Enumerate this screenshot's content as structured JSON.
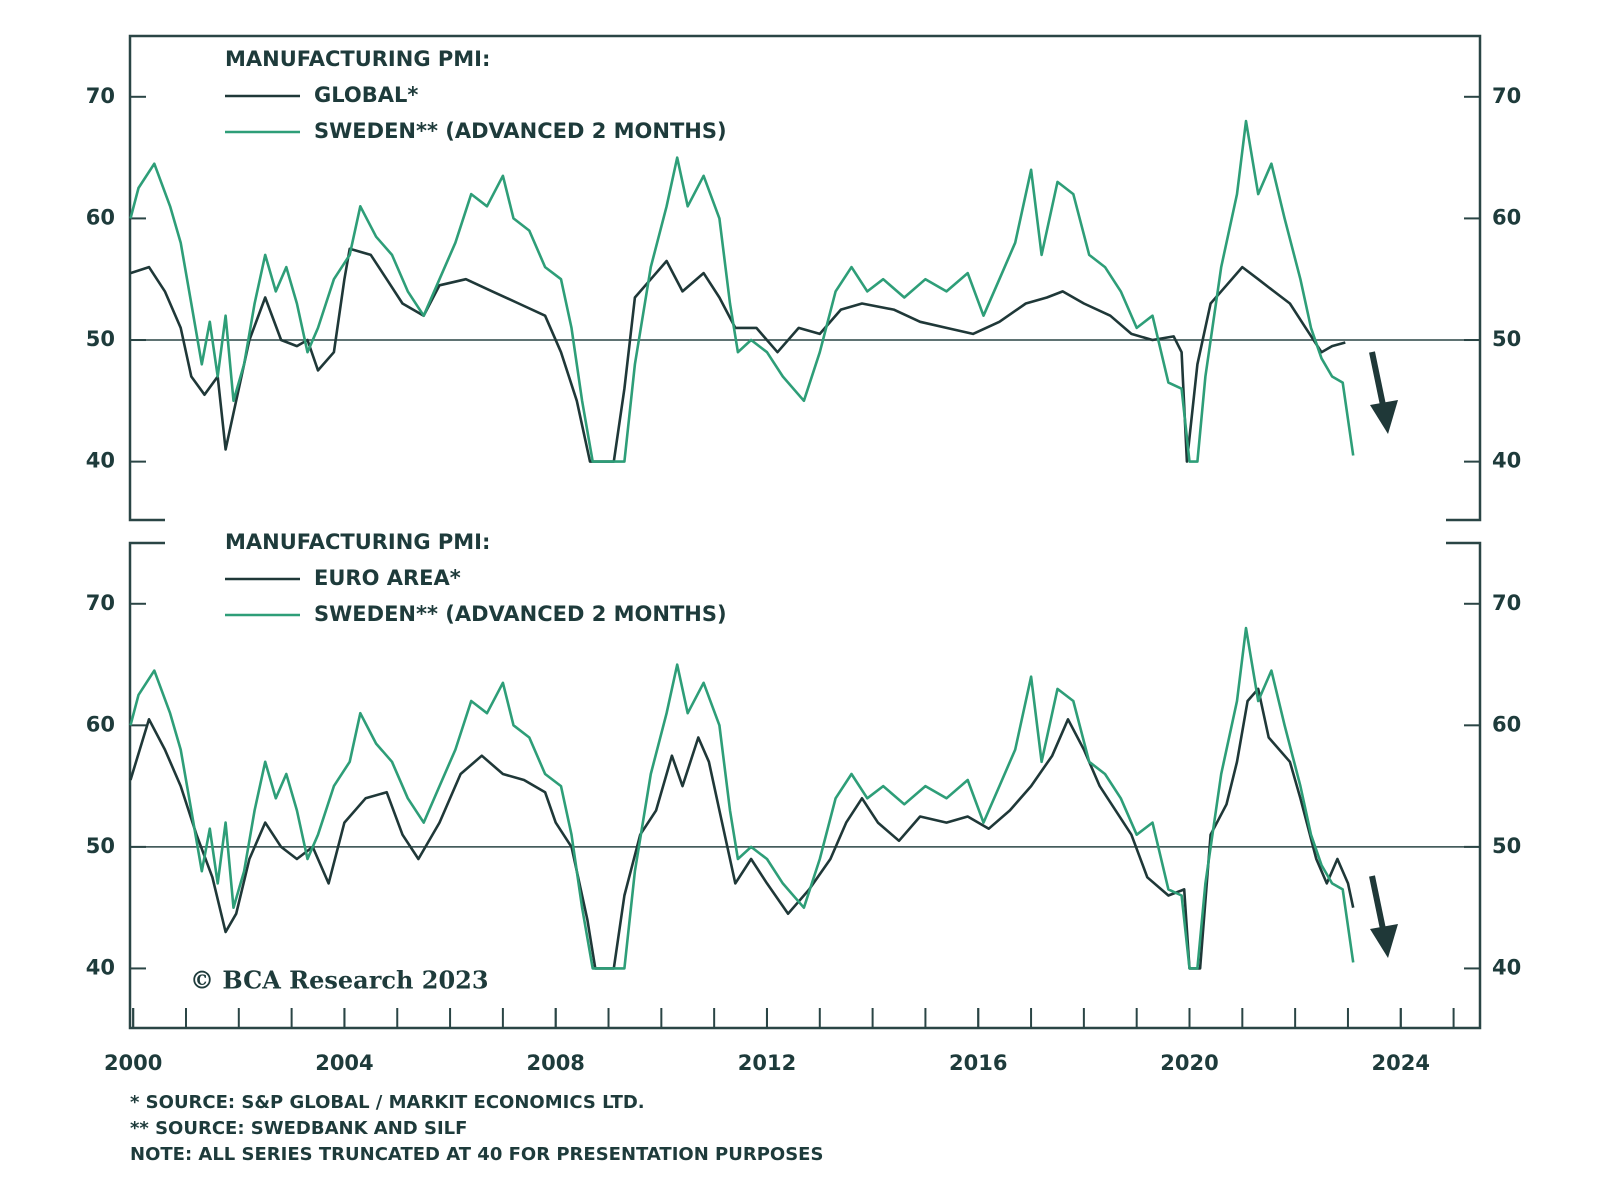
{
  "chart_data": [
    {
      "type": "line",
      "legend_title": "MANUFACTURING PMI:",
      "xlim": [
        1999.94,
        2025.5
      ],
      "ylim": [
        35.2,
        75.0
      ],
      "yticks": [
        40,
        50,
        60,
        70
      ],
      "hline": 50,
      "series": [
        {
          "name": "GLOBAL*",
          "color": "#1f3838",
          "x": [
            1999.95,
            2000.3,
            2000.6,
            2000.9,
            2001.1,
            2001.35,
            2001.6,
            2001.75,
            2001.9,
            2002.2,
            2002.5,
            2002.8,
            2003.1,
            2003.3,
            2003.5,
            2003.8,
            2004.0,
            2004.1,
            2004.5,
            2004.8,
            2005.1,
            2005.5,
            2005.8,
            2006.3,
            2006.8,
            2007.3,
            2007.8,
            2008.1,
            2008.4,
            2008.65,
            2009.1,
            2009.3,
            2009.5,
            2009.8,
            2010.1,
            2010.4,
            2010.8,
            2011.1,
            2011.4,
            2011.8,
            2012.2,
            2012.6,
            2013.0,
            2013.4,
            2013.8,
            2014.4,
            2014.9,
            2015.4,
            2015.9,
            2016.4,
            2016.9,
            2017.3,
            2017.6,
            2018.0,
            2018.5,
            2018.9,
            2019.3,
            2019.7,
            2019.85,
            2019.95,
            2020.15,
            2020.4,
            2020.7,
            2021.0,
            2021.3,
            2021.6,
            2021.9,
            2022.2,
            2022.5,
            2022.7,
            2022.95
          ],
          "values": [
            55.5,
            56,
            54,
            51,
            47,
            45.5,
            47,
            41,
            44,
            50,
            53.5,
            50,
            49.5,
            50,
            47.5,
            49,
            55,
            57.5,
            57,
            55,
            53,
            52,
            54.5,
            55,
            54,
            53,
            52,
            49,
            45,
            40,
            40,
            46,
            53.5,
            55,
            56.5,
            54,
            55.5,
            53.5,
            51,
            51,
            49,
            51,
            50.5,
            52.5,
            53,
            52.5,
            51.5,
            51,
            50.5,
            51.5,
            53,
            53.5,
            54,
            53,
            52,
            50.5,
            50,
            50.3,
            49,
            40,
            48,
            53,
            54.5,
            56,
            55,
            54,
            53,
            51,
            49,
            49.5,
            49.8
          ]
        },
        {
          "name": "SWEDEN** (ADVANCED 2 MONTHS)",
          "color": "#2e9e78",
          "x": [
            1999.95,
            2000.1,
            2000.4,
            2000.7,
            2000.9,
            2001.1,
            2001.3,
            2001.45,
            2001.6,
            2001.75,
            2001.9,
            2002.1,
            2002.3,
            2002.5,
            2002.7,
            2002.9,
            2003.1,
            2003.3,
            2003.5,
            2003.8,
            2004.1,
            2004.3,
            2004.6,
            2004.9,
            2005.2,
            2005.5,
            2005.8,
            2006.1,
            2006.4,
            2006.7,
            2007.0,
            2007.2,
            2007.5,
            2007.8,
            2008.1,
            2008.3,
            2008.5,
            2008.7,
            2009.3,
            2009.5,
            2009.8,
            2010.1,
            2010.3,
            2010.5,
            2010.8,
            2011.1,
            2011.3,
            2011.45,
            2011.7,
            2012.0,
            2012.3,
            2012.7,
            2013.0,
            2013.3,
            2013.6,
            2013.9,
            2014.2,
            2014.6,
            2015.0,
            2015.4,
            2015.8,
            2016.1,
            2016.4,
            2016.7,
            2017.0,
            2017.2,
            2017.5,
            2017.8,
            2018.1,
            2018.4,
            2018.7,
            2019.0,
            2019.3,
            2019.6,
            2019.85,
            2020.0,
            2020.15,
            2020.3,
            2020.6,
            2020.9,
            2021.07,
            2021.3,
            2021.55,
            2021.8,
            2022.1,
            2022.3,
            2022.5,
            2022.7,
            2022.9,
            2023.1
          ],
          "values": [
            60,
            62.5,
            64.5,
            61,
            58,
            53,
            48,
            51.5,
            47,
            52,
            45,
            48,
            53,
            57,
            54,
            56,
            53,
            49,
            51,
            55,
            57,
            61,
            58.5,
            57,
            54,
            52,
            55,
            58,
            62,
            61,
            63.5,
            60,
            59,
            56,
            55,
            51,
            45,
            40,
            40,
            48,
            56,
            61,
            65,
            61,
            63.5,
            60,
            53,
            49,
            50,
            49,
            47,
            45,
            49,
            54,
            56,
            54,
            55,
            53.5,
            55,
            54,
            55.5,
            52,
            55,
            58,
            64,
            57,
            63,
            62,
            57,
            56,
            54,
            51,
            52,
            46.5,
            46,
            40,
            40,
            47,
            56,
            62,
            68,
            62,
            64.5,
            60,
            55,
            51,
            48.5,
            47,
            46.5,
            40.5
          ]
        }
      ]
    },
    {
      "type": "line",
      "legend_title": "MANUFACTURING PMI:",
      "xlim": [
        1999.94,
        2025.5
      ],
      "ylim": [
        35.1,
        75.0
      ],
      "yticks": [
        40,
        50,
        60,
        70
      ],
      "hline": 50,
      "xticks": [
        2000,
        2004,
        2008,
        2012,
        2016,
        2020,
        2024
      ],
      "x_minor_ticks": [
        2000,
        2001,
        2002,
        2003,
        2004,
        2005,
        2006,
        2007,
        2008,
        2009,
        2010,
        2011,
        2012,
        2013,
        2014,
        2015,
        2016,
        2017,
        2018,
        2019,
        2020,
        2021,
        2022,
        2023,
        2024,
        2025
      ],
      "annotation": "© BCA Research 2023",
      "series": [
        {
          "name": "EURO AREA*",
          "color": "#1f3838",
          "x": [
            1999.95,
            2000.3,
            2000.6,
            2000.9,
            2001.2,
            2001.5,
            2001.75,
            2001.95,
            2002.2,
            2002.5,
            2002.8,
            2003.1,
            2003.4,
            2003.7,
            2004.0,
            2004.4,
            2004.8,
            2005.1,
            2005.4,
            2005.8,
            2006.2,
            2006.6,
            2007.0,
            2007.4,
            2007.8,
            2008.0,
            2008.3,
            2008.6,
            2008.75,
            2009.1,
            2009.3,
            2009.6,
            2009.9,
            2010.2,
            2010.4,
            2010.7,
            2010.9,
            2011.1,
            2011.4,
            2011.7,
            2012.0,
            2012.4,
            2012.8,
            2013.2,
            2013.5,
            2013.8,
            2014.1,
            2014.5,
            2014.9,
            2015.4,
            2015.8,
            2016.2,
            2016.6,
            2017.0,
            2017.4,
            2017.7,
            2018.0,
            2018.3,
            2018.6,
            2018.9,
            2019.2,
            2019.6,
            2019.9,
            2020.0,
            2020.2,
            2020.4,
            2020.7,
            2020.9,
            2021.1,
            2021.3,
            2021.5,
            2021.9,
            2022.1,
            2022.4,
            2022.6,
            2022.8,
            2023.0,
            2023.1
          ],
          "values": [
            55.5,
            60.5,
            58,
            55,
            51,
            47.5,
            43,
            44.5,
            49,
            52,
            50,
            49,
            50,
            47,
            52,
            54,
            54.5,
            51,
            49,
            52,
            56,
            57.5,
            56,
            55.5,
            54.5,
            52,
            50,
            44,
            40,
            40,
            46,
            51,
            53,
            57.5,
            55,
            59,
            57,
            53,
            47,
            49,
            47,
            44.5,
            46.5,
            49,
            52,
            54,
            52,
            50.5,
            52.5,
            52,
            52.5,
            51.5,
            53,
            55,
            57.5,
            60.5,
            58,
            55,
            53,
            51,
            47.5,
            46,
            46.5,
            40,
            40,
            51,
            53.5,
            57,
            62,
            63,
            59,
            57,
            54,
            49,
            47,
            49,
            47,
            45
          ]
        },
        {
          "name": "SWEDEN** (ADVANCED 2 MONTHS)",
          "color": "#2e9e78",
          "x": [
            1999.95,
            2000.1,
            2000.4,
            2000.7,
            2000.9,
            2001.1,
            2001.3,
            2001.45,
            2001.6,
            2001.75,
            2001.9,
            2002.1,
            2002.3,
            2002.5,
            2002.7,
            2002.9,
            2003.1,
            2003.3,
            2003.5,
            2003.8,
            2004.1,
            2004.3,
            2004.6,
            2004.9,
            2005.2,
            2005.5,
            2005.8,
            2006.1,
            2006.4,
            2006.7,
            2007.0,
            2007.2,
            2007.5,
            2007.8,
            2008.1,
            2008.3,
            2008.5,
            2008.7,
            2009.3,
            2009.5,
            2009.8,
            2010.1,
            2010.3,
            2010.5,
            2010.8,
            2011.1,
            2011.3,
            2011.45,
            2011.7,
            2012.0,
            2012.3,
            2012.7,
            2013.0,
            2013.3,
            2013.6,
            2013.9,
            2014.2,
            2014.6,
            2015.0,
            2015.4,
            2015.8,
            2016.1,
            2016.4,
            2016.7,
            2017.0,
            2017.2,
            2017.5,
            2017.8,
            2018.1,
            2018.4,
            2018.7,
            2019.0,
            2019.3,
            2019.6,
            2019.85,
            2020.0,
            2020.15,
            2020.3,
            2020.6,
            2020.9,
            2021.07,
            2021.3,
            2021.55,
            2021.8,
            2022.1,
            2022.3,
            2022.5,
            2022.7,
            2022.9,
            2023.1
          ],
          "values": [
            60,
            62.5,
            64.5,
            61,
            58,
            53,
            48,
            51.5,
            47,
            52,
            45,
            48,
            53,
            57,
            54,
            56,
            53,
            49,
            51,
            55,
            57,
            61,
            58.5,
            57,
            54,
            52,
            55,
            58,
            62,
            61,
            63.5,
            60,
            59,
            56,
            55,
            51,
            45,
            40,
            40,
            48,
            56,
            61,
            65,
            61,
            63.5,
            60,
            53,
            49,
            50,
            49,
            47,
            45,
            49,
            54,
            56,
            54,
            55,
            53.5,
            55,
            54,
            55.5,
            52,
            55,
            58,
            64,
            57,
            63,
            62,
            57,
            56,
            54,
            51,
            52,
            46.5,
            46,
            40,
            40,
            47,
            56,
            62,
            68,
            62,
            64.5,
            60,
            55,
            51,
            48.5,
            47,
            46.5,
            40.5
          ]
        }
      ]
    }
  ],
  "notes": [
    "* SOURCE: S&P GLOBAL / MARKIT ECONOMICS LTD.",
    "** SOURCE: SWEDBANK AND SILF",
    "NOTE: ALL SERIES TRUNCATED AT 40 FOR PRESENTATION PURPOSES"
  ]
}
